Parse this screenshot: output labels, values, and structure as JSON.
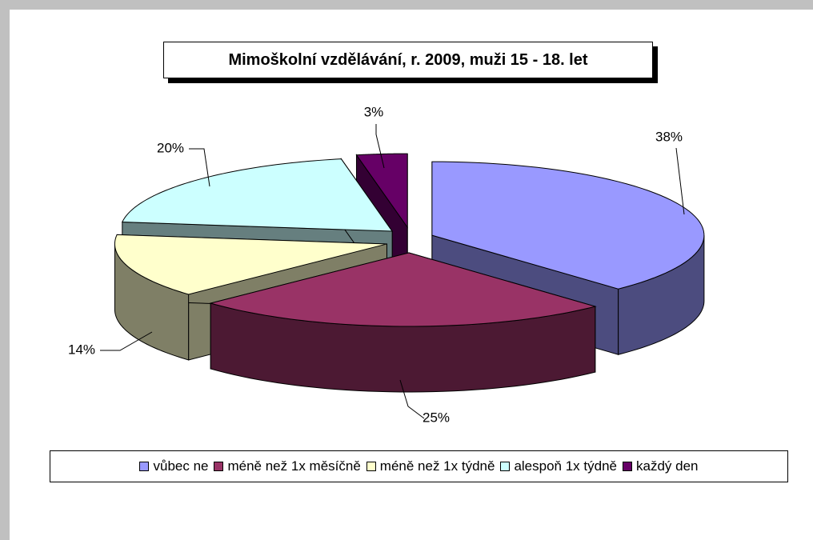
{
  "chart_data": {
    "type": "pie",
    "title": "Mimoškolní vzdělávání, r. 2009, muži 15 - 18. let",
    "categories": [
      "vůbec ne",
      "méně než 1x měsíčně",
      "méně než 1x týdně",
      "alespoň 1x týdně",
      "každý den"
    ],
    "values": [
      38,
      25,
      14,
      20,
      3
    ],
    "value_labels": [
      "38%",
      "25%",
      "14%",
      "20%",
      "3%"
    ],
    "colors": [
      "#9999ff",
      "#993366",
      "#ffffcc",
      "#ccffff",
      "#660066"
    ],
    "legend": "bottom"
  }
}
